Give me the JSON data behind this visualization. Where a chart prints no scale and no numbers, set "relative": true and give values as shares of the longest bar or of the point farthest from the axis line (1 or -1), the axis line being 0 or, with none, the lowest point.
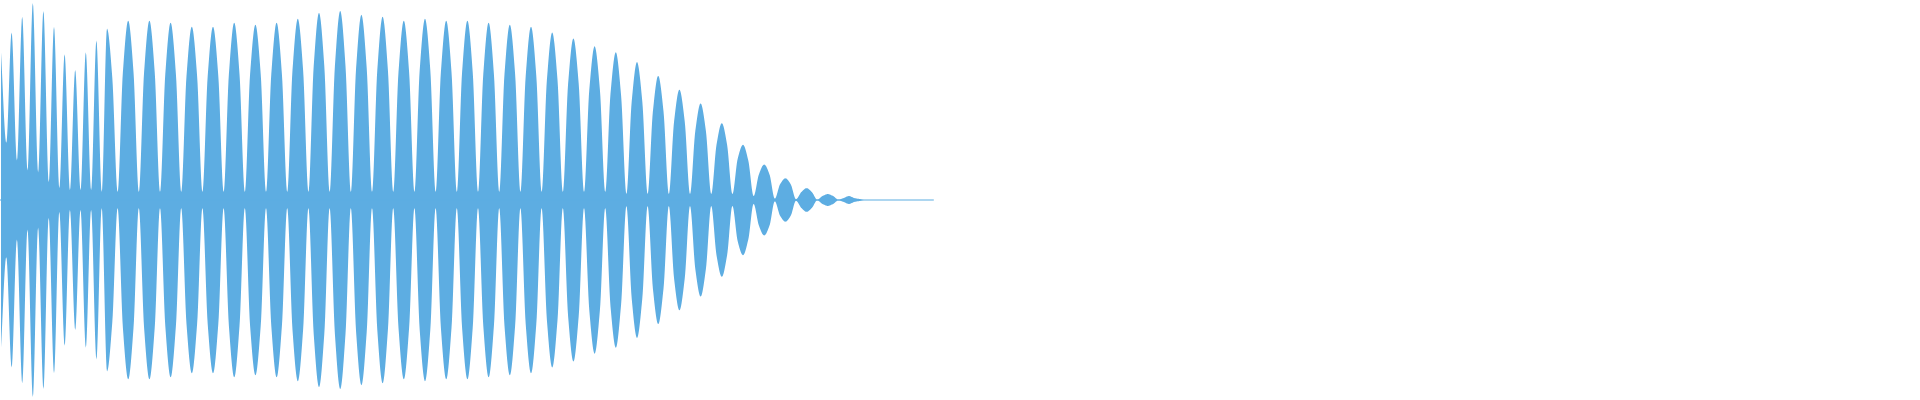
{
  "chart_data": {
    "type": "area",
    "relative": true,
    "categories": [
      null,
      null,
      null,
      null,
      null,
      null,
      null,
      null,
      null,
      null,
      null,
      null,
      null,
      null,
      null,
      null,
      null,
      null,
      null,
      null,
      null,
      null,
      null,
      null,
      null,
      null,
      null,
      null,
      null,
      null,
      null,
      null,
      null,
      null,
      null,
      null,
      null,
      null,
      null,
      null,
      null,
      null,
      null,
      null,
      null,
      null,
      null,
      null,
      null,
      null,
      null,
      null,
      null,
      null,
      null,
      null,
      null,
      null,
      null,
      null,
      null,
      null,
      null,
      null,
      null,
      null,
      null,
      null,
      null,
      null,
      null,
      null,
      null,
      null,
      null,
      null,
      null,
      null,
      null,
      null,
      null,
      null,
      null,
      null,
      null,
      null,
      null,
      null,
      null,
      null,
      null,
      null,
      null,
      null,
      null,
      null,
      null,
      null,
      null,
      null,
      null,
      null,
      null,
      null,
      null,
      null,
      null,
      null,
      null,
      null,
      null,
      null,
      null,
      null,
      null,
      null,
      null,
      null,
      null,
      null,
      null,
      null,
      null,
      null,
      null,
      null,
      null,
      null,
      null,
      null,
      null,
      null,
      null,
      null,
      null,
      null,
      null,
      null,
      null,
      null,
      null,
      null,
      null,
      null,
      null,
      null,
      null,
      null,
      null,
      null,
      null,
      null,
      null,
      null,
      null,
      null,
      null,
      null,
      null,
      null,
      null,
      null,
      null,
      null,
      null,
      null,
      null,
      null,
      null,
      null,
      null,
      null,
      null,
      null,
      null,
      null,
      null
    ],
    "series": [
      {
        "color": "#5dade2",
        "values": [
          0.75,
          0.29,
          0.85,
          0.2,
          0.93,
          0.15,
          1.0,
          0.14,
          0.96,
          0.09,
          0.88,
          0.06,
          0.74,
          0.05,
          0.66,
          0.05,
          0.75,
          0.05,
          0.81,
          0.04,
          0.87,
          0.62,
          0.04,
          0.65,
          0.91,
          0.65,
          0.04,
          0.65,
          0.91,
          0.65,
          0.04,
          0.64,
          0.9,
          0.64,
          0.04,
          0.63,
          0.88,
          0.63,
          0.04,
          0.63,
          0.88,
          0.63,
          0.04,
          0.64,
          0.9,
          0.64,
          0.04,
          0.64,
          0.89,
          0.64,
          0.04,
          0.64,
          0.9,
          0.64,
          0.04,
          0.66,
          0.92,
          0.66,
          0.04,
          0.68,
          0.95,
          0.68,
          0.04,
          0.68,
          0.96,
          0.68,
          0.04,
          0.67,
          0.94,
          0.67,
          0.04,
          0.66,
          0.93,
          0.66,
          0.04,
          0.65,
          0.91,
          0.65,
          0.04,
          0.66,
          0.92,
          0.66,
          0.04,
          0.65,
          0.91,
          0.65,
          0.04,
          0.65,
          0.91,
          0.65,
          0.04,
          0.64,
          0.9,
          0.64,
          0.04,
          0.64,
          0.89,
          0.64,
          0.04,
          0.63,
          0.88,
          0.63,
          0.04,
          0.61,
          0.85,
          0.61,
          0.04,
          0.59,
          0.82,
          0.59,
          0.04,
          0.56,
          0.78,
          0.56,
          0.04,
          0.54,
          0.75,
          0.53,
          0.03,
          0.5,
          0.7,
          0.5,
          0.03,
          0.45,
          0.63,
          0.45,
          0.03,
          0.4,
          0.56,
          0.4,
          0.03,
          0.35,
          0.49,
          0.35,
          0.03,
          0.28,
          0.39,
          0.28,
          0.03,
          0.21,
          0.28,
          0.2,
          0.02,
          0.13,
          0.18,
          0.13,
          0.007,
          0.08,
          0.11,
          0.08,
          0.004,
          0.04,
          0.06,
          0.04,
          0.002,
          0.02,
          0.03,
          0.02,
          0.002,
          0.01,
          0.02,
          0.01,
          0.005,
          0,
          0,
          0,
          0,
          0,
          0,
          0,
          0,
          0,
          0,
          0,
          0,
          0,
          0
        ]
      },
      {
        "color": "#5dade2",
        "values": [
          -0.75,
          -0.29,
          -0.85,
          -0.2,
          -0.93,
          -0.15,
          -1.0,
          -0.14,
          -0.96,
          -0.09,
          -0.88,
          -0.06,
          -0.74,
          -0.05,
          -0.66,
          -0.05,
          -0.75,
          -0.05,
          -0.81,
          -0.04,
          -0.87,
          -0.62,
          -0.04,
          -0.65,
          -0.91,
          -0.65,
          -0.04,
          -0.65,
          -0.91,
          -0.65,
          -0.04,
          -0.64,
          -0.9,
          -0.64,
          -0.04,
          -0.63,
          -0.88,
          -0.63,
          -0.04,
          -0.63,
          -0.88,
          -0.63,
          -0.04,
          -0.64,
          -0.9,
          -0.64,
          -0.04,
          -0.64,
          -0.89,
          -0.64,
          -0.04,
          -0.64,
          -0.9,
          -0.64,
          -0.04,
          -0.66,
          -0.92,
          -0.66,
          -0.04,
          -0.68,
          -0.95,
          -0.68,
          -0.04,
          -0.68,
          -0.96,
          -0.68,
          -0.04,
          -0.67,
          -0.94,
          -0.67,
          -0.04,
          -0.66,
          -0.93,
          -0.66,
          -0.04,
          -0.65,
          -0.91,
          -0.65,
          -0.04,
          -0.66,
          -0.92,
          -0.66,
          -0.04,
          -0.65,
          -0.91,
          -0.65,
          -0.04,
          -0.65,
          -0.91,
          -0.65,
          -0.04,
          -0.64,
          -0.9,
          -0.64,
          -0.04,
          -0.64,
          -0.89,
          -0.64,
          -0.04,
          -0.63,
          -0.88,
          -0.63,
          -0.04,
          -0.61,
          -0.85,
          -0.61,
          -0.04,
          -0.59,
          -0.82,
          -0.59,
          -0.04,
          -0.56,
          -0.78,
          -0.56,
          -0.04,
          -0.54,
          -0.75,
          -0.53,
          -0.03,
          -0.5,
          -0.7,
          -0.5,
          -0.03,
          -0.45,
          -0.63,
          -0.45,
          -0.03,
          -0.4,
          -0.56,
          -0.4,
          -0.03,
          -0.35,
          -0.49,
          -0.35,
          -0.03,
          -0.28,
          -0.39,
          -0.28,
          -0.03,
          -0.21,
          -0.28,
          -0.2,
          -0.02,
          -0.13,
          -0.18,
          -0.13,
          -0.007,
          -0.08,
          -0.11,
          -0.08,
          -0.004,
          -0.04,
          -0.06,
          -0.04,
          -0.002,
          -0.02,
          -0.03,
          -0.02,
          -0.002,
          -0.01,
          -0.02,
          -0.01,
          -0.005,
          0,
          0,
          0,
          0,
          0,
          0,
          0,
          0,
          0,
          0,
          0,
          0,
          0,
          0
        ]
      }
    ],
    "ref_lines": [
      {
        "axis": "y",
        "value": 0,
        "color": "#5dade2"
      }
    ]
  }
}
